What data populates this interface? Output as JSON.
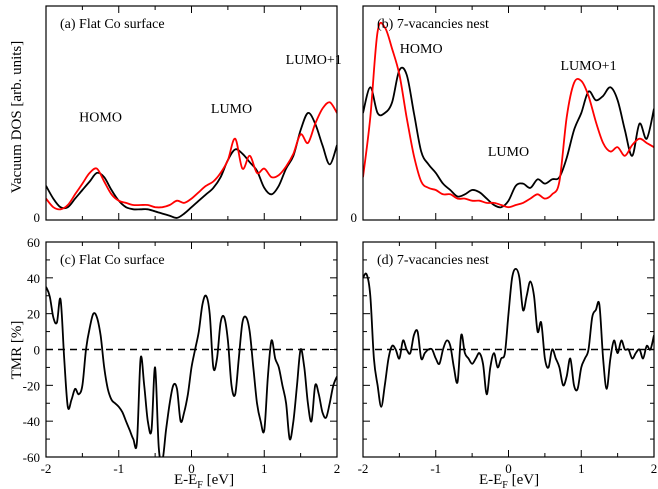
{
  "figure": {
    "ylabel_top": "Vacuum DOS [arb. units]",
    "ylabel_bottom": "TMR [%]",
    "xlabel_main": "E-E",
    "xlabel_sub": "F",
    "xlabel_unit": "[eV]"
  },
  "chart_data": [
    {
      "id": "a",
      "type": "line",
      "title": "(a) Flat Co surface",
      "xlim": [
        -2,
        2
      ],
      "ylim": [
        0,
        1
      ],
      "ytick_labels": [
        "0"
      ],
      "annotations": [
        {
          "text": "HOMO",
          "x": -1.25,
          "y": 0.46
        },
        {
          "text": "LUMO",
          "x": 0.55,
          "y": 0.5
        },
        {
          "text": "LUMO+1",
          "x": 1.68,
          "y": 0.73
        }
      ],
      "series": [
        {
          "color": "#000000",
          "x": [
            -2.0,
            -1.9,
            -1.8,
            -1.7,
            -1.6,
            -1.5,
            -1.4,
            -1.3,
            -1.2,
            -1.1,
            -1.0,
            -0.9,
            -0.8,
            -0.7,
            -0.6,
            -0.5,
            -0.4,
            -0.3,
            -0.2,
            -0.1,
            0.0,
            0.1,
            0.2,
            0.3,
            0.4,
            0.5,
            0.6,
            0.7,
            0.8,
            0.9,
            1.0,
            1.1,
            1.2,
            1.3,
            1.4,
            1.5,
            1.6,
            1.7,
            1.8,
            1.9,
            2.0
          ],
          "y": [
            0.16,
            0.1,
            0.06,
            0.06,
            0.1,
            0.14,
            0.18,
            0.22,
            0.2,
            0.14,
            0.09,
            0.06,
            0.05,
            0.05,
            0.05,
            0.04,
            0.03,
            0.02,
            0.01,
            0.03,
            0.06,
            0.09,
            0.12,
            0.15,
            0.2,
            0.28,
            0.33,
            0.31,
            0.27,
            0.23,
            0.15,
            0.12,
            0.16,
            0.24,
            0.3,
            0.42,
            0.5,
            0.45,
            0.35,
            0.26,
            0.35
          ]
        },
        {
          "color": "#ff0000",
          "x": [
            -2.0,
            -1.9,
            -1.8,
            -1.7,
            -1.6,
            -1.5,
            -1.4,
            -1.3,
            -1.2,
            -1.1,
            -1.0,
            -0.9,
            -0.8,
            -0.7,
            -0.6,
            -0.5,
            -0.4,
            -0.3,
            -0.2,
            -0.1,
            0.0,
            0.1,
            0.2,
            0.3,
            0.4,
            0.5,
            0.6,
            0.7,
            0.8,
            0.9,
            1.0,
            1.1,
            1.2,
            1.3,
            1.4,
            1.5,
            1.6,
            1.7,
            1.8,
            1.9,
            2.0
          ],
          "y": [
            0.1,
            0.06,
            0.05,
            0.07,
            0.12,
            0.17,
            0.22,
            0.24,
            0.18,
            0.12,
            0.09,
            0.08,
            0.07,
            0.07,
            0.07,
            0.06,
            0.06,
            0.07,
            0.09,
            0.08,
            0.1,
            0.13,
            0.16,
            0.18,
            0.22,
            0.28,
            0.38,
            0.24,
            0.3,
            0.22,
            0.24,
            0.2,
            0.21,
            0.25,
            0.31,
            0.4,
            0.36,
            0.45,
            0.52,
            0.55,
            0.5
          ]
        }
      ]
    },
    {
      "id": "b",
      "type": "line",
      "title": "(b) 7-vacancies nest",
      "xlim": [
        -2,
        2
      ],
      "ylim": [
        0,
        1
      ],
      "ytick_labels": [
        "0"
      ],
      "annotations": [
        {
          "text": "HOMO",
          "x": -1.2,
          "y": 0.78
        },
        {
          "text": "LUMO",
          "x": 0.0,
          "y": 0.3
        },
        {
          "text": "LUMO+1",
          "x": 1.1,
          "y": 0.7
        }
      ],
      "series": [
        {
          "color": "#000000",
          "x": [
            -2.0,
            -1.9,
            -1.8,
            -1.7,
            -1.6,
            -1.5,
            -1.4,
            -1.3,
            -1.2,
            -1.1,
            -1.0,
            -0.9,
            -0.8,
            -0.7,
            -0.6,
            -0.5,
            -0.4,
            -0.3,
            -0.2,
            -0.1,
            0.0,
            0.1,
            0.2,
            0.3,
            0.4,
            0.5,
            0.6,
            0.7,
            0.8,
            0.9,
            1.0,
            1.1,
            1.2,
            1.3,
            1.4,
            1.5,
            1.6,
            1.7,
            1.8,
            1.9,
            2.0
          ],
          "y": [
            0.5,
            0.62,
            0.5,
            0.5,
            0.55,
            0.7,
            0.68,
            0.5,
            0.32,
            0.26,
            0.22,
            0.17,
            0.14,
            0.11,
            0.12,
            0.14,
            0.13,
            0.1,
            0.07,
            0.06,
            0.09,
            0.16,
            0.17,
            0.15,
            0.19,
            0.17,
            0.19,
            0.2,
            0.29,
            0.42,
            0.5,
            0.6,
            0.56,
            0.58,
            0.62,
            0.56,
            0.42,
            0.3,
            0.45,
            0.38,
            0.52
          ]
        },
        {
          "color": "#ff0000",
          "x": [
            -2.0,
            -1.9,
            -1.8,
            -1.7,
            -1.6,
            -1.5,
            -1.4,
            -1.3,
            -1.2,
            -1.1,
            -1.0,
            -0.9,
            -0.8,
            -0.7,
            -0.6,
            -0.5,
            -0.4,
            -0.3,
            -0.2,
            -0.1,
            0.0,
            0.1,
            0.2,
            0.3,
            0.4,
            0.5,
            0.6,
            0.7,
            0.8,
            0.9,
            1.0,
            1.1,
            1.2,
            1.3,
            1.4,
            1.5,
            1.6,
            1.7,
            1.8,
            1.9,
            2.0
          ],
          "y": [
            0.2,
            0.48,
            0.88,
            0.9,
            0.8,
            0.68,
            0.48,
            0.3,
            0.18,
            0.15,
            0.14,
            0.12,
            0.12,
            0.1,
            0.1,
            0.09,
            0.09,
            0.08,
            0.08,
            0.07,
            0.06,
            0.07,
            0.08,
            0.1,
            0.12,
            0.1,
            0.12,
            0.18,
            0.48,
            0.64,
            0.65,
            0.58,
            0.46,
            0.36,
            0.32,
            0.34,
            0.3,
            0.35,
            0.38,
            0.36,
            0.34
          ]
        }
      ]
    },
    {
      "id": "c",
      "type": "line",
      "title": "(c) Flat Co surface",
      "xlim": [
        -2,
        2
      ],
      "ylim": [
        -60,
        60
      ],
      "xticks": [
        -2,
        -1,
        0,
        1,
        2
      ],
      "yticks": [
        -60,
        -40,
        -20,
        0,
        20,
        40,
        60
      ],
      "reference_line": {
        "y": 0,
        "style": "dashed"
      },
      "series": [
        {
          "color": "#000000",
          "x": [
            -2.0,
            -1.95,
            -1.9,
            -1.85,
            -1.8,
            -1.75,
            -1.7,
            -1.65,
            -1.6,
            -1.55,
            -1.5,
            -1.45,
            -1.4,
            -1.35,
            -1.3,
            -1.25,
            -1.2,
            -1.15,
            -1.1,
            -1.05,
            -1.0,
            -0.95,
            -0.9,
            -0.85,
            -0.8,
            -0.75,
            -0.7,
            -0.65,
            -0.6,
            -0.55,
            -0.5,
            -0.45,
            -0.4,
            -0.35,
            -0.3,
            -0.25,
            -0.2,
            -0.15,
            -0.1,
            -0.05,
            0.0,
            0.05,
            0.1,
            0.15,
            0.2,
            0.25,
            0.3,
            0.35,
            0.4,
            0.45,
            0.5,
            0.55,
            0.6,
            0.65,
            0.7,
            0.75,
            0.8,
            0.85,
            0.9,
            0.95,
            1.0,
            1.05,
            1.1,
            1.15,
            1.2,
            1.25,
            1.3,
            1.35,
            1.4,
            1.45,
            1.5,
            1.55,
            1.6,
            1.65,
            1.7,
            1.75,
            1.8,
            1.85,
            1.9,
            1.95,
            2.0
          ],
          "y": [
            35,
            30,
            18,
            15,
            28,
            -5,
            -32,
            -28,
            -22,
            -25,
            -20,
            0,
            12,
            20,
            18,
            8,
            -10,
            -22,
            -28,
            -30,
            -32,
            -35,
            -40,
            -45,
            -50,
            -52,
            -5,
            -20,
            -40,
            -45,
            -10,
            -55,
            -62,
            -45,
            -30,
            -20,
            -22,
            -40,
            -35,
            -25,
            -10,
            0,
            10,
            25,
            30,
            20,
            -10,
            -5,
            15,
            18,
            5,
            -20,
            -25,
            -5,
            15,
            18,
            10,
            -10,
            -30,
            -40,
            -45,
            -15,
            5,
            -5,
            -10,
            -20,
            -30,
            -50,
            -40,
            -20,
            0,
            -10,
            -30,
            -40,
            -20,
            -25,
            -35,
            -38,
            -30,
            -20,
            -15
          ]
        }
      ]
    },
    {
      "id": "d",
      "type": "line",
      "title": "(d) 7-vacancies nest",
      "xlim": [
        -2,
        2
      ],
      "ylim": [
        -60,
        60
      ],
      "xticks": [
        -2,
        -1,
        0,
        1,
        2
      ],
      "reference_line": {
        "y": 0,
        "style": "dashed"
      },
      "series": [
        {
          "color": "#000000",
          "x": [
            -2.0,
            -1.95,
            -1.9,
            -1.85,
            -1.8,
            -1.75,
            -1.7,
            -1.65,
            -1.6,
            -1.55,
            -1.5,
            -1.45,
            -1.4,
            -1.35,
            -1.3,
            -1.25,
            -1.2,
            -1.15,
            -1.1,
            -1.05,
            -1.0,
            -0.95,
            -0.9,
            -0.85,
            -0.8,
            -0.75,
            -0.7,
            -0.65,
            -0.6,
            -0.55,
            -0.5,
            -0.45,
            -0.4,
            -0.35,
            -0.3,
            -0.25,
            -0.2,
            -0.15,
            -0.1,
            -0.05,
            0.0,
            0.05,
            0.1,
            0.15,
            0.2,
            0.25,
            0.3,
            0.35,
            0.4,
            0.45,
            0.5,
            0.55,
            0.6,
            0.65,
            0.7,
            0.75,
            0.8,
            0.85,
            0.9,
            0.95,
            1.0,
            1.05,
            1.1,
            1.15,
            1.2,
            1.25,
            1.3,
            1.35,
            1.4,
            1.45,
            1.5,
            1.55,
            1.6,
            1.65,
            1.7,
            1.75,
            1.8,
            1.85,
            1.9,
            1.95,
            2.0
          ],
          "y": [
            40,
            42,
            30,
            -5,
            -20,
            -32,
            -20,
            -5,
            2,
            0,
            -5,
            5,
            0,
            -2,
            8,
            10,
            -5,
            -2,
            0,
            0,
            -5,
            -8,
            0,
            5,
            2,
            -10,
            -18,
            8,
            -2,
            -5,
            -8,
            -5,
            -2,
            -8,
            -25,
            -10,
            -2,
            -10,
            -5,
            -2,
            20,
            40,
            45,
            40,
            22,
            30,
            38,
            30,
            10,
            15,
            -5,
            -10,
            0,
            -5,
            -10,
            -20,
            -15,
            -5,
            -20,
            -22,
            -10,
            -5,
            0,
            18,
            22,
            25,
            -5,
            -22,
            -5,
            5,
            -2,
            5,
            0,
            0,
            -5,
            -2,
            0,
            -5,
            2,
            0,
            8
          ]
        }
      ]
    }
  ]
}
